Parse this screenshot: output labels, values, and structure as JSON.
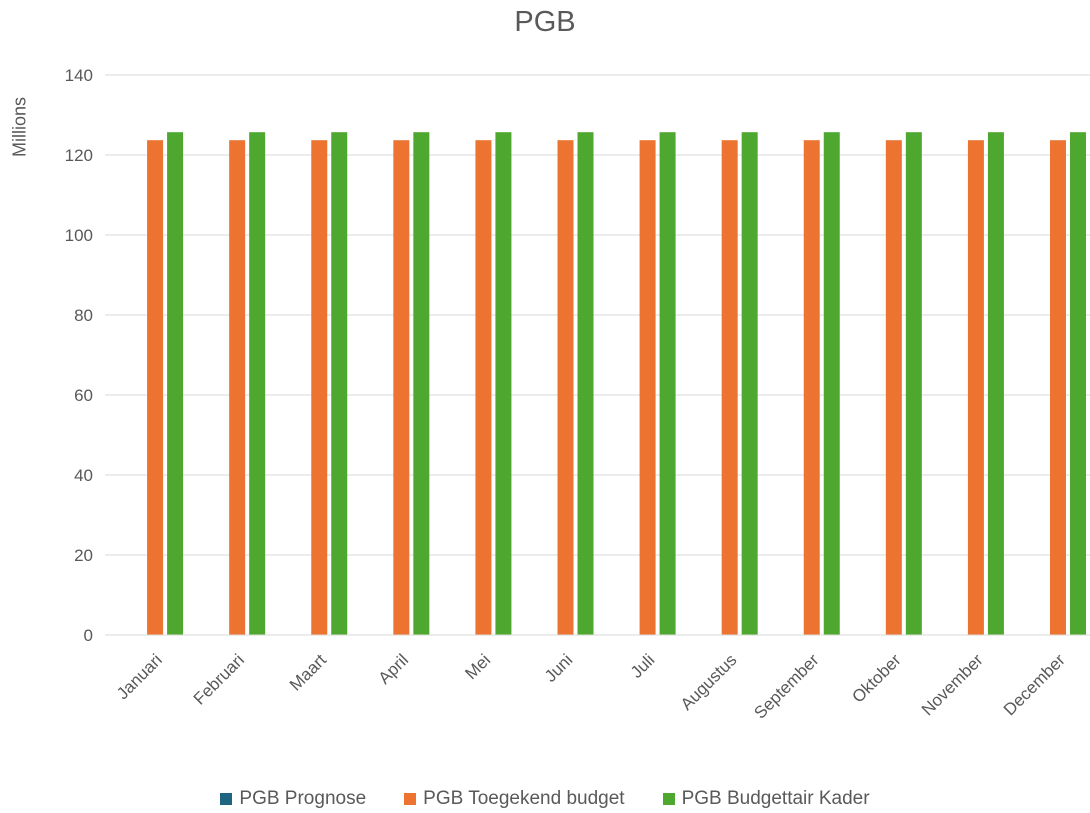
{
  "chart_data": {
    "type": "bar",
    "title": "PGB",
    "ylabel": "Millions",
    "xlabel": "",
    "ylim": [
      0,
      140
    ],
    "yticks": [
      0,
      20,
      40,
      60,
      80,
      100,
      120,
      140
    ],
    "grid": true,
    "legend_position": "bottom",
    "categories": [
      "Januari",
      "Februari",
      "Maart",
      "April",
      "Mei",
      "Juni",
      "Juli",
      "Augustus",
      "September",
      "Oktober",
      "November",
      "December"
    ],
    "series": [
      {
        "name": "PGB Prognose",
        "color": "#1f6480",
        "values": [
          0,
          0,
          0,
          0,
          0,
          0,
          0,
          0,
          0,
          0,
          0,
          0
        ]
      },
      {
        "name": "PGB Toegekend budget",
        "color": "#ed7331",
        "values": [
          123.7,
          123.7,
          123.7,
          123.7,
          123.7,
          123.7,
          123.7,
          123.7,
          123.7,
          123.7,
          123.7,
          123.7
        ]
      },
      {
        "name": "PGB Budgettair Kader",
        "color": "#4ea72e",
        "values": [
          125.7,
          125.7,
          125.7,
          125.7,
          125.7,
          125.7,
          125.7,
          125.7,
          125.7,
          125.7,
          125.7,
          125.7
        ]
      }
    ]
  }
}
